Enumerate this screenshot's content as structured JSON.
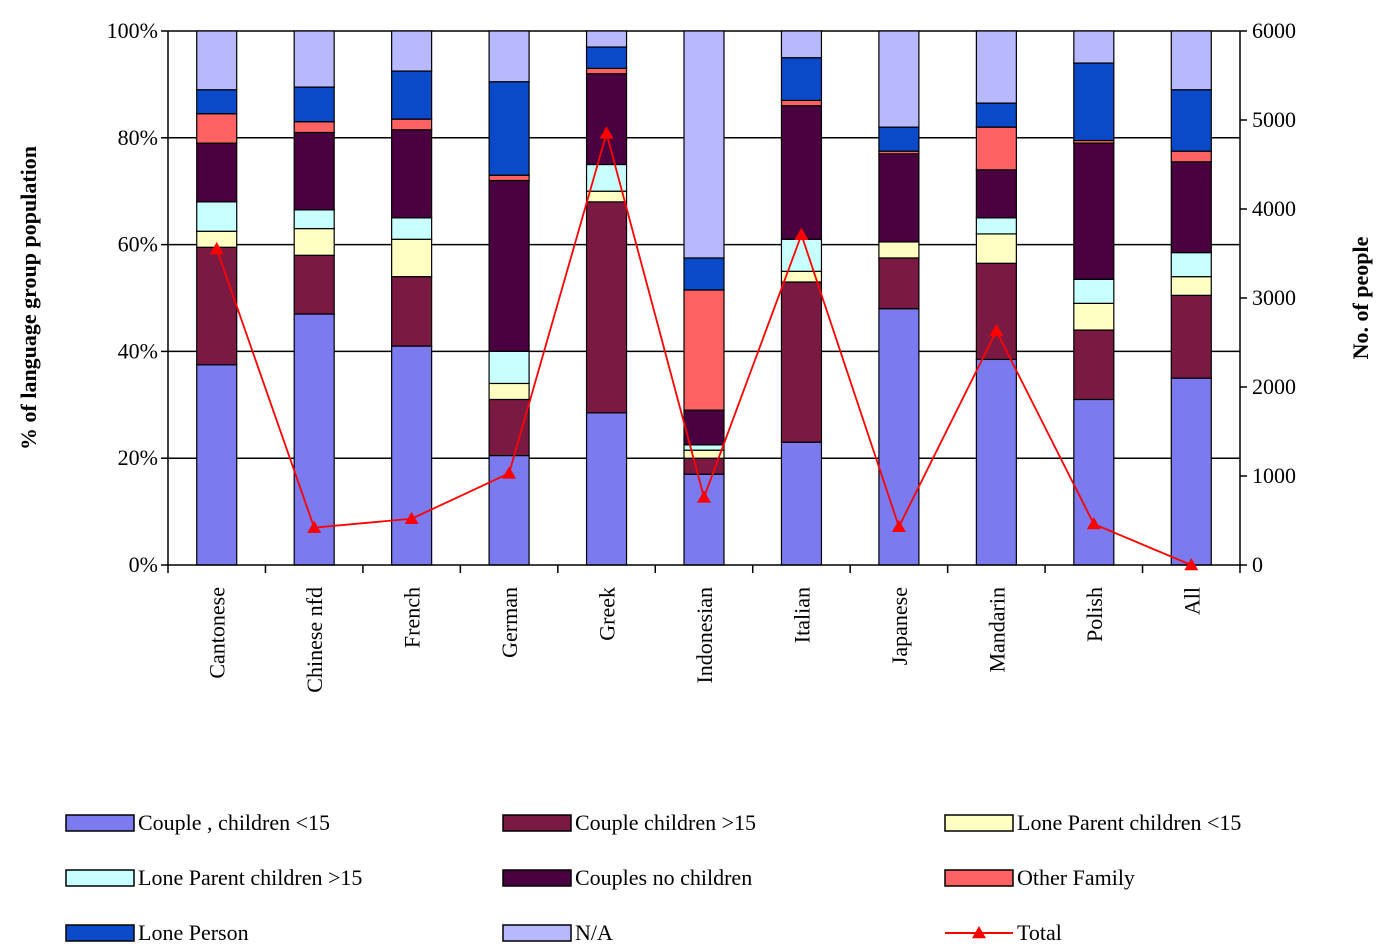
{
  "chart_data": {
    "type": "bar",
    "stacked": true,
    "categories": [
      "Cantonese",
      "Chinese nfd",
      "French",
      "German",
      "Greek",
      "Indonesian",
      "Italian",
      "Japanese",
      "Mandarin",
      "Polish",
      "All"
    ],
    "y_left": {
      "label": "% of language group population",
      "lim": [
        0,
        100
      ],
      "ticks": [
        "0%",
        "20%",
        "40%",
        "60%",
        "80%",
        "100%"
      ]
    },
    "y_right": {
      "label": "No. of people",
      "lim": [
        0,
        6000
      ],
      "ticks": [
        "0",
        "1000",
        "2000",
        "3000",
        "4000",
        "5000",
        "6000"
      ]
    },
    "grid": "horizontal",
    "legend_position": "bottom",
    "series": [
      {
        "name": "Couple , children <15",
        "color": "#7b7bef",
        "values": [
          37.5,
          47,
          41,
          20.5,
          28.5,
          17,
          23,
          48,
          38.5,
          31,
          35
        ]
      },
      {
        "name": "Couple children >15",
        "color": "#7a1a42",
        "values": [
          22,
          11,
          13,
          10.5,
          39.5,
          3,
          30,
          9.5,
          18,
          13,
          15.5
        ]
      },
      {
        "name": "Lone Parent children <15",
        "color": "#ffffc4",
        "values": [
          3,
          5,
          7,
          3,
          2,
          1.5,
          2,
          3,
          5.5,
          5,
          3.5
        ]
      },
      {
        "name": "Lone Parent children >15",
        "color": "#c8ffff",
        "values": [
          5.5,
          3.5,
          4,
          6,
          5,
          1,
          6,
          0,
          3,
          4.5,
          4.5
        ]
      },
      {
        "name": "Couples no children",
        "color": "#4a0040",
        "values": [
          11,
          14.5,
          16.5,
          32,
          17,
          6.5,
          25,
          16.5,
          9,
          25.5,
          17
        ]
      },
      {
        "name": "Other Family",
        "color": "#ff6262",
        "values": [
          5.5,
          2,
          2,
          1,
          1,
          22.5,
          1,
          0.5,
          8,
          0.5,
          2
        ]
      },
      {
        "name": "Lone Person",
        "color": "#0a4ac8",
        "values": [
          4.5,
          6.5,
          9,
          17.5,
          4,
          6,
          8,
          4.5,
          4.5,
          14.5,
          11.5
        ]
      },
      {
        "name": "N/A",
        "color": "#b8b8ff",
        "values": [
          11,
          10.5,
          7.5,
          9.5,
          3,
          42.5,
          5,
          18,
          13.5,
          6,
          11
        ]
      }
    ],
    "line_series": {
      "name": "Total",
      "color": "#ff0000",
      "axis": "right",
      "values": [
        3550,
        420,
        520,
        1030,
        4850,
        760,
        3710,
        430,
        2630,
        460,
        0
      ]
    }
  }
}
